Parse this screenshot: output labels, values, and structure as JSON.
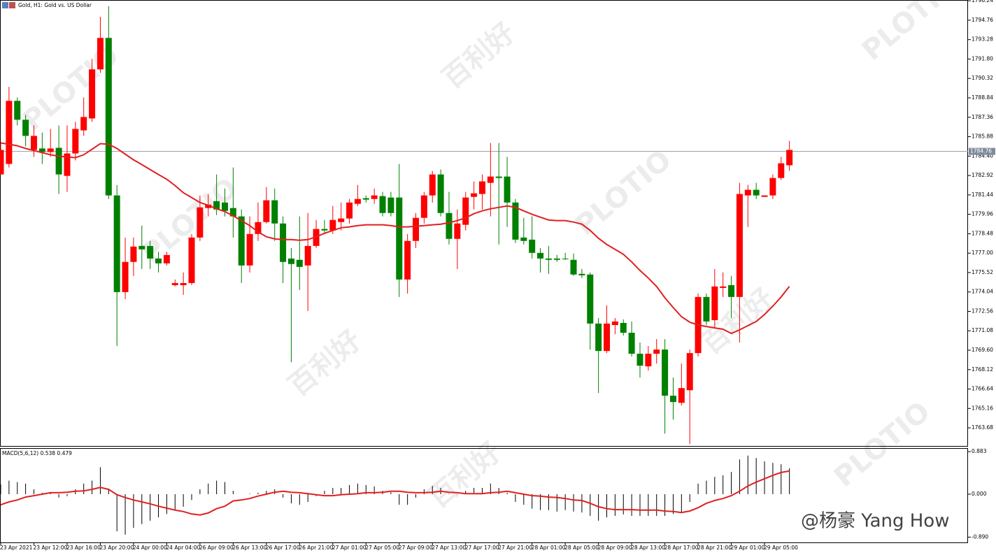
{
  "chart_data": [
    {
      "type": "candlestick",
      "title": "Gold, H1:  Gold vs. US Dollar",
      "up_color": "#ff0000",
      "down_color": "#008000",
      "wick_color": "#000000",
      "categories": [
        "23 Apr 2021",
        null,
        null,
        null,
        "23 Apr 12:00",
        null,
        null,
        null,
        "23 Apr 16:00",
        null,
        null,
        null,
        "23 Apr 20:00",
        null,
        null,
        null,
        "24 Apr 00:00",
        null,
        null,
        null,
        "24 Apr 04:00",
        null,
        null,
        null,
        "26 Apr 09:00",
        null,
        null,
        null,
        "26 Apr 13:00",
        null,
        null,
        null,
        "26 Apr 17:00",
        null,
        null,
        null,
        "26 Apr 21:00",
        null,
        null,
        null,
        "27 Apr 01:00",
        null,
        null,
        null,
        "27 Apr 05:00",
        null,
        null,
        null,
        "27 Apr 09:00",
        null,
        null,
        null,
        "27 Apr 13:00",
        null,
        null,
        null,
        "27 Apr 17:00",
        null,
        null,
        null,
        "27 Apr 21:00",
        null,
        null,
        null,
        "28 Apr 01:00",
        null,
        null,
        null,
        "28 Apr 05:00",
        null,
        null,
        null,
        "28 Apr 09:00",
        null,
        null,
        null,
        "28 Apr 13:00",
        null,
        null,
        null,
        "28 Apr 17:00",
        null,
        null,
        null,
        "28 Apr 21:00",
        null,
        null,
        null,
        "29 Apr 01:00",
        null,
        null,
        null,
        "29 Apr 05:00",
        null,
        null,
        null
      ],
      "candles": [
        [
          1783.0,
          1785.4,
          1783.0,
          1784.87
        ],
        [
          1783.8,
          1789.68,
          1783.53,
          1788.61
        ],
        [
          1788.61,
          1788.87,
          1786.74,
          1787.17
        ],
        [
          1787.17,
          1787.54,
          1785.14,
          1785.94
        ],
        [
          1784.87,
          1786.74,
          1784.34,
          1785.94
        ],
        [
          1784.98,
          1786.2,
          1783.8,
          1784.71
        ],
        [
          1784.71,
          1786.47,
          1784.34,
          1784.98
        ],
        [
          1785.03,
          1786.74,
          1781.51,
          1783.0
        ],
        [
          1782.89,
          1786.74,
          1781.67,
          1784.6
        ],
        [
          1784.6,
          1787.01,
          1784.07,
          1786.47
        ],
        [
          1786.36,
          1788.87,
          1785.94,
          1787.38
        ],
        [
          1787.27,
          1791.81,
          1787.01,
          1791.01
        ],
        [
          1791.01,
          1795.02,
          1790.74,
          1793.41
        ],
        [
          1793.41,
          1795.82,
          1781.13,
          1781.4
        ],
        [
          1781.4,
          1782.2,
          1769.92,
          1774.03
        ],
        [
          1774.03,
          1778.19,
          1773.5,
          1776.33
        ],
        [
          1776.33,
          1778.19,
          1775.26,
          1777.5
        ],
        [
          1777.55,
          1779.1,
          1775.79,
          1777.29
        ],
        [
          1777.55,
          1777.93,
          1775.79,
          1776.59
        ],
        [
          1776.59,
          1777.11,
          1775.53,
          1776.22
        ],
        [
          1776.22,
          1777.11,
          1776.06,
          1776.86
        ],
        [
          1774.56,
          1774.99,
          1774.46,
          1774.72
        ],
        [
          1774.56,
          1775.53,
          1773.82,
          1774.72
        ],
        [
          1774.72,
          1778.46,
          1774.56,
          1778.19
        ],
        [
          1778.19,
          1781.4,
          1777.93,
          1780.49
        ],
        [
          1780.44,
          1781.51,
          1779.8,
          1780.7
        ],
        [
          1780.97,
          1783.0,
          1779.9,
          1780.33
        ],
        [
          1780.86,
          1781.93,
          1779.8,
          1780.22
        ],
        [
          1780.44,
          1783.53,
          1778.19,
          1779.8
        ],
        [
          1779.8,
          1780.33,
          1774.72,
          1776.06
        ],
        [
          1776.06,
          1779.8,
          1775.53,
          1778.46
        ],
        [
          1778.46,
          1780.86,
          1777.93,
          1779.37
        ],
        [
          1779.37,
          1782.04,
          1779.26,
          1781.03
        ],
        [
          1781.03,
          1781.93,
          1777.93,
          1779.26
        ],
        [
          1779.26,
          1779.8,
          1774.72,
          1776.33
        ],
        [
          1776.59,
          1777.39,
          1768.69,
          1776.17
        ],
        [
          1776.49,
          1779.8,
          1774.19,
          1775.95
        ],
        [
          1776.06,
          1780.06,
          1772.59,
          1777.55
        ],
        [
          1777.55,
          1779.53,
          1777.39,
          1778.84
        ],
        [
          1778.84,
          1779.53,
          1778.46,
          1778.73
        ],
        [
          1778.73,
          1780.6,
          1778.46,
          1779.53
        ],
        [
          1779.37,
          1780.86,
          1778.73,
          1779.64
        ],
        [
          1779.64,
          1781.13,
          1779.26,
          1780.86
        ],
        [
          1780.76,
          1782.2,
          1780.6,
          1781.13
        ],
        [
          1781.19,
          1781.4,
          1780.86,
          1781.08
        ],
        [
          1781.13,
          1781.93,
          1780.76,
          1781.4
        ],
        [
          1781.35,
          1781.67,
          1779.8,
          1780.06
        ],
        [
          1781.24,
          1781.67,
          1779.8,
          1780.06
        ],
        [
          1781.24,
          1783.8,
          1773.66,
          1774.99
        ],
        [
          1774.99,
          1778.46,
          1773.92,
          1777.93
        ],
        [
          1777.93,
          1780.06,
          1777.39,
          1779.69
        ],
        [
          1779.69,
          1781.67,
          1779.26,
          1781.4
        ],
        [
          1781.4,
          1783.27,
          1780.86,
          1783.0
        ],
        [
          1783.0,
          1783.38,
          1779.8,
          1780.06
        ],
        [
          1780.06,
          1781.67,
          1777.66,
          1778.09
        ],
        [
          1778.09,
          1780.33,
          1775.79,
          1779.26
        ],
        [
          1779.16,
          1781.67,
          1778.73,
          1781.24
        ],
        [
          1781.29,
          1782.47,
          1780.33,
          1781.56
        ],
        [
          1781.51,
          1783.0,
          1780.33,
          1782.47
        ],
        [
          1782.36,
          1785.4,
          1779.8,
          1782.84
        ],
        [
          1782.84,
          1785.4,
          1777.66,
          1782.73
        ],
        [
          1782.84,
          1784.34,
          1779.0,
          1780.86
        ],
        [
          1780.86,
          1781.13,
          1777.77,
          1778.03
        ],
        [
          1778.19,
          1779.69,
          1777.66,
          1777.93
        ],
        [
          1778.03,
          1779.8,
          1776.59,
          1777.02
        ],
        [
          1777.02,
          1777.39,
          1775.53,
          1776.59
        ],
        [
          1776.59,
          1777.55,
          1775.42,
          1776.49
        ],
        [
          1776.59,
          1776.86,
          1776.33,
          1776.49
        ],
        [
          1776.59,
          1777.02,
          1776.49,
          1776.54
        ],
        [
          1776.49,
          1776.97,
          1775.26,
          1775.37
        ],
        [
          1775.42,
          1775.79,
          1775.1,
          1775.31
        ],
        [
          1775.37,
          1775.53,
          1769.65,
          1771.63
        ],
        [
          1771.63,
          1772.05,
          1766.34,
          1769.54
        ],
        [
          1769.54,
          1773.02,
          1769.38,
          1771.63
        ],
        [
          1771.52,
          1772.05,
          1770.82,
          1771.79
        ],
        [
          1771.68,
          1771.95,
          1770.72,
          1770.93
        ],
        [
          1770.93,
          1771.79,
          1769.12,
          1769.33
        ],
        [
          1769.33,
          1770.19,
          1767.51,
          1768.42
        ],
        [
          1768.37,
          1769.92,
          1768.05,
          1769.33
        ],
        [
          1769.33,
          1770.45,
          1768.58,
          1769.65
        ],
        [
          1769.65,
          1770.45,
          1763.24,
          1766.13
        ],
        [
          1766.13,
          1767.51,
          1764.31,
          1765.65
        ],
        [
          1765.59,
          1768.58,
          1765.38,
          1766.71
        ],
        [
          1766.55,
          1769.65,
          1762.44,
          1769.38
        ],
        [
          1769.38,
          1773.92,
          1769.12,
          1773.66
        ],
        [
          1773.66,
          1773.92,
          1771.52,
          1771.79
        ],
        [
          1771.89,
          1775.79,
          1771.25,
          1774.46
        ],
        [
          1774.35,
          1775.53,
          1773.66,
          1774.46
        ],
        [
          1774.56,
          1775.26,
          1772.05,
          1773.66
        ],
        [
          1773.66,
          1782.36,
          1770.19,
          1781.51
        ],
        [
          1781.4,
          1782.2,
          1779.0,
          1781.83
        ],
        [
          1781.83,
          1782.36,
          1781.13,
          1781.4
        ],
        [
          1781.29,
          1781.4,
          1781.29,
          1781.4
        ],
        [
          1781.4,
          1783.0,
          1781.13,
          1782.73
        ],
        [
          1782.73,
          1784.34,
          1782.57,
          1783.85
        ],
        [
          1783.7,
          1785.56,
          1783.27,
          1784.87
        ]
      ],
      "series": [
        {
          "color": "#e02020",
          "values": [
            1785.4,
            1785.3,
            1785.19,
            1784.98,
            1784.82,
            1784.66,
            1784.5,
            1784.39,
            1784.34,
            1784.28,
            1784.5,
            1784.92,
            1785.35,
            1785.3,
            1784.98,
            1784.55,
            1784.12,
            1783.75,
            1783.37,
            1783.0,
            1782.63,
            1782.15,
            1781.61,
            1781.24,
            1780.86,
            1780.65,
            1780.38,
            1780.17,
            1779.85,
            1779.48,
            1779.1,
            1778.62,
            1778.25,
            1778.09,
            1778.03,
            1778.03,
            1777.98,
            1778.03,
            1778.25,
            1778.51,
            1778.73,
            1778.94,
            1779.0,
            1779.1,
            1779.16,
            1779.16,
            1779.16,
            1779.1,
            1779.0,
            1779.0,
            1779.05,
            1779.1,
            1779.16,
            1779.21,
            1779.32,
            1779.48,
            1779.69,
            1780.01,
            1780.22,
            1780.38,
            1780.49,
            1780.6,
            1780.49,
            1780.22,
            1779.96,
            1779.74,
            1779.53,
            1779.48,
            1779.48,
            1779.37,
            1779.21,
            1778.73,
            1778.14,
            1777.66,
            1777.29,
            1776.91,
            1776.33,
            1775.68,
            1775.1,
            1774.46,
            1773.6,
            1772.85,
            1772.16,
            1771.73,
            1771.52,
            1771.41,
            1771.3,
            1771.2,
            1770.88,
            1771.15,
            1771.47,
            1771.79,
            1772.32,
            1772.96,
            1773.66,
            1774.46
          ]
        }
      ],
      "current_price": 1784.76,
      "ylim": [
        1762.3,
        1796.3
      ],
      "yticks": [
        1796.24,
        1794.76,
        {
          "value": 1793.28,
          "label": "1793.28"
        },
        {
          "value": 1791.8,
          "label": "1791.80"
        },
        {
          "value": 1790.32,
          "label": "1790.32"
        },
        1788.84,
        1787.36,
        1785.88,
        {
          "value": 1784.4,
          "label": "1784.40"
        },
        1782.92,
        1781.44,
        1779.96,
        1778.48,
        {
          "value": 1777.0,
          "label": "1777.00"
        },
        1775.52,
        1774.04,
        1772.56,
        1771.08,
        {
          "value": 1769.6,
          "label": "1769.60"
        },
        1768.12,
        1766.64,
        1765.16,
        1763.68
      ]
    },
    {
      "type": "macd",
      "title": "MACD(5,6,12) 0.538 0.479",
      "histogram_color": "#000000",
      "signal_color": "#e02020",
      "histogram": [
        0.2,
        0.28,
        0.25,
        0.22,
        0.1,
        0.03,
        0.03,
        -0.07,
        -0.04,
        0.1,
        0.22,
        0.28,
        0.56,
        0.1,
        -0.77,
        -0.84,
        -0.7,
        -0.62,
        -0.55,
        -0.48,
        -0.41,
        -0.33,
        -0.26,
        -0.12,
        0.1,
        0.22,
        0.28,
        0.25,
        0.07,
        0.0,
        0.01,
        0.03,
        0.07,
        0.1,
        -0.07,
        -0.19,
        -0.22,
        -0.16,
        -0.04,
        0.07,
        0.13,
        0.13,
        0.19,
        0.22,
        0.19,
        0.16,
        0.07,
        0.04,
        -0.22,
        -0.22,
        -0.07,
        0.1,
        0.17,
        0.13,
        0.01,
        -0.01,
        0.07,
        0.13,
        0.13,
        0.22,
        0.13,
        0.03,
        -0.16,
        -0.22,
        -0.3,
        -0.33,
        -0.33,
        -0.36,
        -0.33,
        -0.36,
        -0.38,
        -0.45,
        -0.55,
        -0.48,
        -0.45,
        -0.42,
        -0.45,
        -0.45,
        -0.45,
        -0.45,
        -0.45,
        -0.41,
        -0.38,
        -0.16,
        0.22,
        0.28,
        0.36,
        0.39,
        0.46,
        0.72,
        0.8,
        0.75,
        0.68,
        0.65,
        0.62,
        0.538
      ],
      "signal": [
        -0.22,
        -0.16,
        -0.12,
        -0.06,
        -0.03,
        0.0,
        0.03,
        0.03,
        0.04,
        0.06,
        0.07,
        0.1,
        0.14,
        0.1,
        -0.01,
        -0.07,
        -0.12,
        -0.16,
        -0.2,
        -0.25,
        -0.29,
        -0.33,
        -0.36,
        -0.41,
        -0.43,
        -0.39,
        -0.3,
        -0.25,
        -0.14,
        -0.12,
        -0.09,
        -0.04,
        0.0,
        0.04,
        0.06,
        0.04,
        0.03,
        0.01,
        -0.01,
        -0.03,
        -0.03,
        -0.01,
        0.0,
        0.01,
        0.03,
        0.03,
        0.04,
        0.06,
        0.06,
        0.04,
        0.03,
        0.03,
        0.04,
        0.06,
        0.04,
        0.03,
        0.01,
        0.01,
        0.01,
        0.03,
        0.04,
        0.06,
        0.03,
        0.0,
        -0.03,
        -0.04,
        -0.06,
        -0.07,
        -0.09,
        -0.12,
        -0.13,
        -0.19,
        -0.26,
        -0.3,
        -0.32,
        -0.32,
        -0.32,
        -0.33,
        -0.33,
        -0.33,
        -0.35,
        -0.36,
        -0.38,
        -0.35,
        -0.28,
        -0.19,
        -0.13,
        -0.09,
        -0.03,
        0.06,
        0.17,
        0.25,
        0.32,
        0.39,
        0.45,
        0.479
      ],
      "ylim": [
        -1.0,
        0.956
      ],
      "yticks": [
        0.883,
        {
          "value": 0,
          "label": "0.000"
        },
        {
          "value": -0.89,
          "label": "-0.890"
        }
      ]
    }
  ],
  "watermark": [
    "PLOTIO",
    "百利好"
  ],
  "signature": "@杨豪 Yang How"
}
